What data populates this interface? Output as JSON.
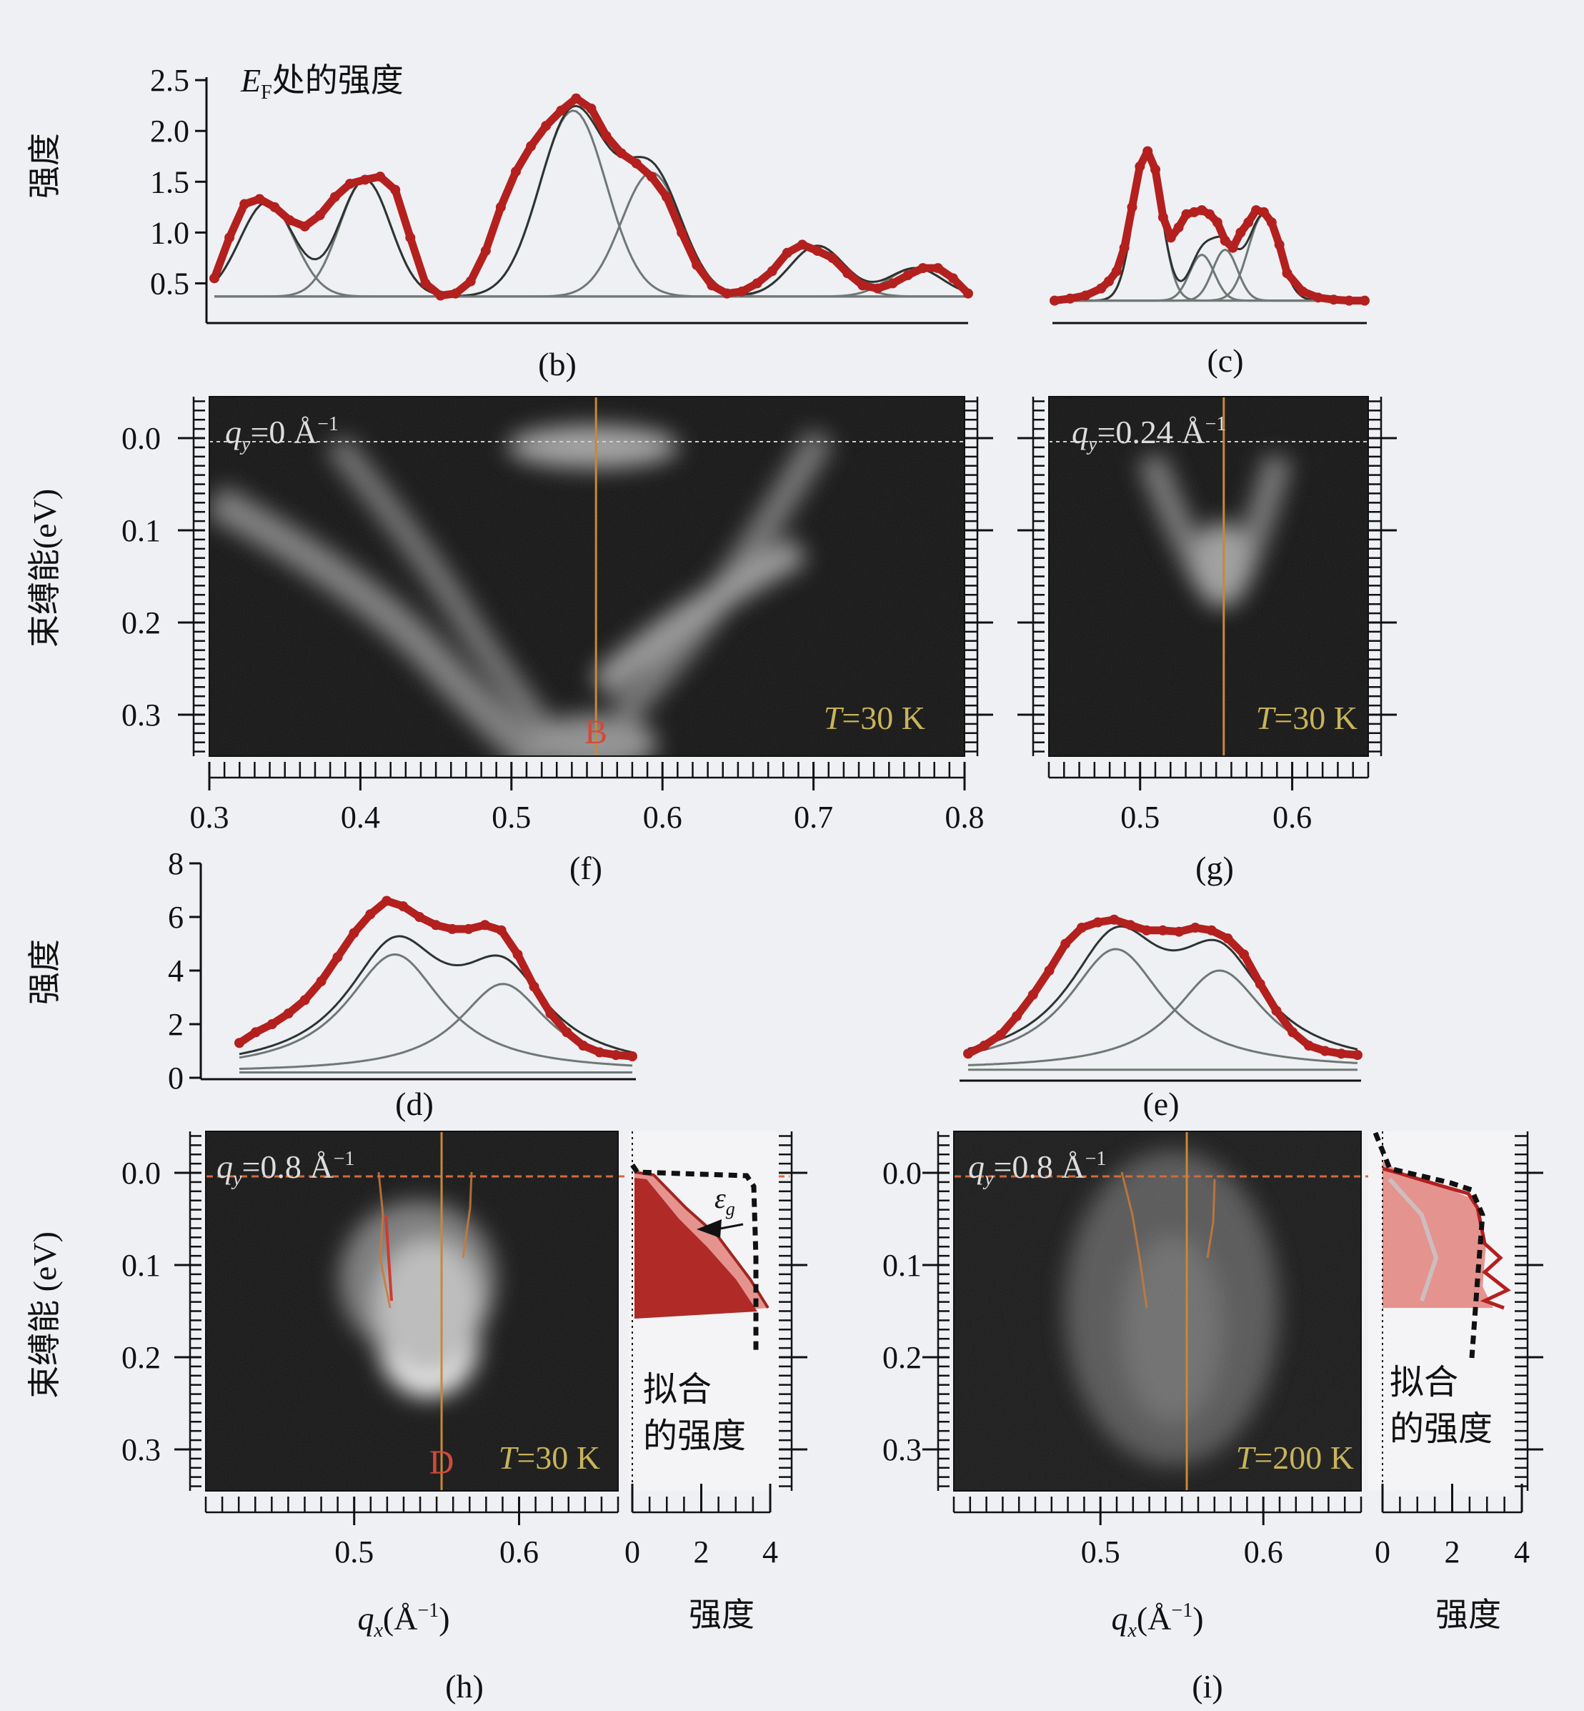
{
  "figure": {
    "axis_labels": {
      "intensity": "强度",
      "binding_energy": "束缚能(eV)",
      "binding_energy_spaced": "束缚能 (eV)",
      "qx": "q",
      "qx_sub": "x",
      "qx_unit": "(Å",
      "qx_exp": "−1",
      "qx_close": ")"
    },
    "fitted_intensity_line1": "拟合",
    "fitted_intensity_line2": "的强度"
  },
  "colors": {
    "data_red": "#b3201e",
    "fit_gray": "#6f7874",
    "marker_orange": "#c8883a",
    "pink_fill": "#e5938f",
    "dark_red_fill": "#b02a27",
    "image_bg": "#111111",
    "temp_label": "#c8b45a"
  },
  "chart_data": [
    {
      "panel": "(b)",
      "type": "line",
      "title_main": "E",
      "title_sub": "F",
      "title_rest": "处的强度",
      "ylabel": "强度",
      "yticks": [
        "0.5",
        "1.0",
        "1.5",
        "2.0",
        "2.5"
      ],
      "ylim": [
        0.25,
        2.55
      ],
      "xlim": [
        0.3,
        0.8
      ],
      "series": [
        {
          "values_x": [
            0.3,
            0.31,
            0.32,
            0.33,
            0.34,
            0.35,
            0.36,
            0.37,
            0.38,
            0.39,
            0.4,
            0.41,
            0.42,
            0.43,
            0.44,
            0.45,
            0.46,
            0.47,
            0.48,
            0.49,
            0.5,
            0.51,
            0.52,
            0.53,
            0.54,
            0.55,
            0.56,
            0.57,
            0.58,
            0.59,
            0.6,
            0.61,
            0.62,
            0.63,
            0.64,
            0.65,
            0.66,
            0.67,
            0.68,
            0.69,
            0.7,
            0.71,
            0.72,
            0.73,
            0.74,
            0.75,
            0.76,
            0.77,
            0.78,
            0.79,
            0.8
          ],
          "values_y": [
            0.55,
            0.95,
            1.28,
            1.33,
            1.25,
            1.12,
            1.06,
            1.17,
            1.35,
            1.48,
            1.52,
            1.55,
            1.42,
            0.95,
            0.5,
            0.38,
            0.4,
            0.52,
            0.82,
            1.25,
            1.6,
            1.85,
            2.05,
            2.2,
            2.32,
            2.22,
            1.95,
            1.78,
            1.68,
            1.55,
            1.35,
            1.0,
            0.68,
            0.48,
            0.4,
            0.42,
            0.5,
            0.62,
            0.8,
            0.88,
            0.82,
            0.75,
            0.6,
            0.48,
            0.45,
            0.5,
            0.58,
            0.65,
            0.65,
            0.55,
            0.4
          ]
        }
      ],
      "fit_peaks": [
        {
          "center": 0.335,
          "amp": 0.93,
          "width": 0.018
        },
        {
          "center": 0.4,
          "amp": 1.15,
          "width": 0.017
        },
        {
          "center": 0.538,
          "amp": 1.83,
          "width": 0.022
        },
        {
          "center": 0.59,
          "amp": 1.22,
          "width": 0.02
        },
        {
          "center": 0.7,
          "amp": 0.5,
          "width": 0.018
        },
        {
          "center": 0.765,
          "amp": 0.28,
          "width": 0.018
        }
      ],
      "fit_baseline": 0.37
    },
    {
      "panel": "(c)",
      "type": "line",
      "xlim": [
        0.45,
        0.65
      ],
      "ylim": [
        0.25,
        2.55
      ],
      "series": [
        {
          "values_x": [
            0.45,
            0.46,
            0.47,
            0.48,
            0.485,
            0.49,
            0.495,
            0.5,
            0.505,
            0.51,
            0.515,
            0.52,
            0.525,
            0.53,
            0.535,
            0.54,
            0.545,
            0.55,
            0.555,
            0.56,
            0.565,
            0.57,
            0.575,
            0.58,
            0.585,
            0.59,
            0.595,
            0.6,
            0.61,
            0.62,
            0.63,
            0.64,
            0.65
          ],
          "values_y": [
            0.33,
            0.35,
            0.38,
            0.45,
            0.52,
            0.62,
            0.85,
            1.25,
            1.65,
            1.8,
            1.62,
            1.15,
            0.95,
            1.05,
            1.18,
            1.2,
            1.22,
            1.18,
            1.1,
            0.92,
            0.85,
            1.0,
            1.1,
            1.22,
            1.2,
            1.1,
            0.88,
            0.6,
            0.42,
            0.36,
            0.34,
            0.33,
            0.33
          ]
        }
      ],
      "fit_peaks": [
        {
          "center": 0.51,
          "amp": 1.45,
          "width": 0.009
        },
        {
          "center": 0.545,
          "amp": 0.45,
          "width": 0.008
        },
        {
          "center": 0.56,
          "amp": 0.5,
          "width": 0.008
        },
        {
          "center": 0.585,
          "amp": 0.85,
          "width": 0.01
        }
      ],
      "fit_baseline": 0.33
    },
    {
      "panel": "(f)",
      "type": "heatmap",
      "label_var": "q",
      "label_sub": "y",
      "label_value": "=0 Å",
      "label_exp": "−1",
      "temperature_var": "T",
      "temperature_value": "=30 K",
      "marker": "B",
      "marker_x": 0.556,
      "xticks": [
        "0.3",
        "0.4",
        "0.5",
        "0.6",
        "0.7",
        "0.8"
      ],
      "xlim": [
        0.3,
        0.8
      ],
      "yticks": [
        "0.0",
        "0.1",
        "0.2",
        "0.3"
      ],
      "ylim": [
        -0.045,
        0.345
      ],
      "ylabel": "束缚能(eV)"
    },
    {
      "panel": "(g)",
      "type": "heatmap",
      "label_var": "q",
      "label_sub": "y",
      "label_value": "=0.24 Å",
      "label_exp": "−1",
      "temperature_var": "T",
      "temperature_value": "=30 K",
      "marker_x": 0.555,
      "xticks": [
        "0.5",
        "0.6"
      ],
      "xlim": [
        0.44,
        0.65
      ],
      "ylim": [
        -0.045,
        0.345
      ]
    },
    {
      "panel": "(d)",
      "type": "line",
      "ylabel": "强度",
      "yticks": [
        "0",
        "2",
        "4",
        "6",
        "8"
      ],
      "ylim": [
        0,
        8
      ],
      "xlim": [
        0.43,
        0.67
      ],
      "series": [
        {
          "values_x": [
            0.43,
            0.44,
            0.45,
            0.46,
            0.47,
            0.48,
            0.49,
            0.5,
            0.51,
            0.52,
            0.53,
            0.54,
            0.55,
            0.56,
            0.57,
            0.58,
            0.59,
            0.6,
            0.61,
            0.62,
            0.63,
            0.64,
            0.65,
            0.66,
            0.67
          ],
          "values_y": [
            1.3,
            1.7,
            2.0,
            2.4,
            2.9,
            3.6,
            4.5,
            5.4,
            6.1,
            6.6,
            6.4,
            6.0,
            5.7,
            5.55,
            5.55,
            5.7,
            5.5,
            4.6,
            3.4,
            2.4,
            1.7,
            1.2,
            0.95,
            0.85,
            0.8
          ]
        }
      ],
      "fit_peaks": [
        {
          "center": 0.525,
          "amp": 4.4,
          "width": 0.036
        },
        {
          "center": 0.591,
          "amp": 3.3,
          "width": 0.033
        }
      ],
      "fit_baseline": 0.2
    },
    {
      "panel": "(e)",
      "type": "line",
      "ylim": [
        0,
        8
      ],
      "xlim": [
        0.43,
        0.67
      ],
      "series": [
        {
          "values_x": [
            0.43,
            0.44,
            0.45,
            0.46,
            0.47,
            0.48,
            0.49,
            0.5,
            0.51,
            0.52,
            0.53,
            0.54,
            0.55,
            0.56,
            0.57,
            0.58,
            0.59,
            0.6,
            0.61,
            0.62,
            0.63,
            0.64,
            0.65,
            0.66,
            0.67
          ],
          "values_y": [
            0.9,
            1.2,
            1.6,
            2.3,
            3.1,
            4.0,
            5.0,
            5.6,
            5.8,
            5.9,
            5.7,
            5.5,
            5.5,
            5.45,
            5.6,
            5.5,
            5.2,
            4.6,
            3.5,
            2.5,
            1.7,
            1.2,
            1.0,
            0.9,
            0.85
          ]
        }
      ],
      "fit_peaks": [
        {
          "center": 0.521,
          "amp": 4.5,
          "width": 0.036
        },
        {
          "center": 0.585,
          "amp": 3.7,
          "width": 0.034
        }
      ],
      "fit_baseline": 0.3
    },
    {
      "panel": "(h)",
      "type": "heatmap",
      "label_var": "q",
      "label_sub": "y",
      "label_value": "=0.8 Å",
      "label_exp": "−1",
      "temperature_var": "T",
      "temperature_value": "=30 K",
      "marker": "D",
      "marker_x": 0.553,
      "xticks": [
        "0.5",
        "0.6"
      ],
      "xlim": [
        0.41,
        0.66
      ],
      "yticks": [
        "0.0",
        "0.1",
        "0.2",
        "0.3"
      ],
      "ylim": [
        -0.045,
        0.345
      ],
      "ylabel": "束缚能 (eV)",
      "side_xticks": [
        "0",
        "2",
        "4"
      ],
      "side_xlim": [
        0,
        4
      ],
      "side_xlabel": "强度",
      "gap_label": "ε",
      "gap_sub": "g"
    },
    {
      "panel": "(i)",
      "type": "heatmap",
      "label_var": "q",
      "label_sub": "y",
      "label_value": "=0.8 Å",
      "label_exp": "−1",
      "temperature_var": "T",
      "temperature_value": "=200 K",
      "marker_x": 0.553,
      "xticks": [
        "0.5",
        "0.6"
      ],
      "xlim": [
        0.41,
        0.66
      ],
      "ylim": [
        -0.045,
        0.345
      ],
      "side_xticks": [
        "0",
        "2",
        "4"
      ],
      "side_xlim": [
        0,
        4
      ],
      "side_xlabel": "强度"
    }
  ]
}
